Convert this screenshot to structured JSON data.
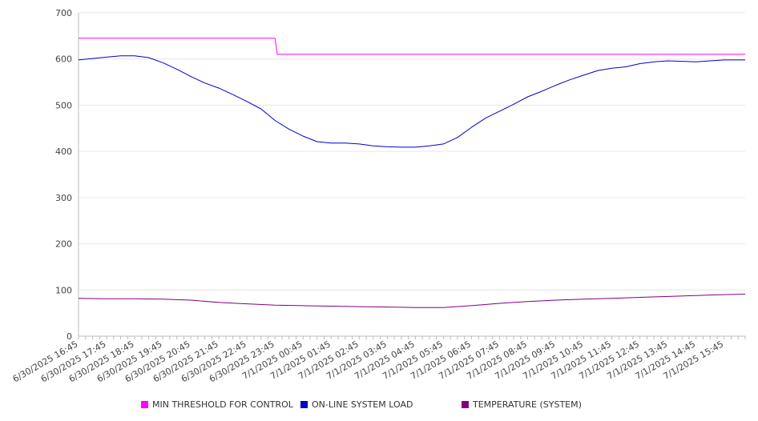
{
  "chart_data": {
    "type": "line",
    "title": "",
    "xlabel": "",
    "ylabel": "",
    "ylim": [
      0,
      700
    ],
    "y_ticks": [
      0,
      100,
      200,
      300,
      400,
      500,
      600,
      700
    ],
    "grid": "horizontal",
    "legend_position": "bottom",
    "x_tick_labels": [
      "6/30/2025 16:45",
      "6/30/2025 17:45",
      "6/30/2025 18:45",
      "6/30/2025 19:45",
      "6/30/2025 20:45",
      "6/30/2025 21:45",
      "6/30/2025 22:45",
      "6/30/2025 23:45",
      "7/1/2025 00:45",
      "7/1/2025 01:45",
      "7/1/2025 02:45",
      "7/1/2025 03:45",
      "7/1/2025 04:45",
      "7/1/2025 05:45",
      "7/1/2025 06:45",
      "7/1/2025 07:45",
      "7/1/2025 08:45",
      "7/1/2025 09:45",
      "7/1/2025 10:45",
      "7/1/2025 11:45",
      "7/1/2025 12:45",
      "7/1/2025 13:45",
      "7/1/2025 14:45",
      "7/1/2025 15:45"
    ],
    "x_range": [
      "6/30/2025 16:45",
      "7/1/2025 16:30"
    ],
    "series": [
      {
        "name": "MIN THRESHOLD FOR CONTROL",
        "color": "#ff00ff",
        "x": [
          "6/30/2025 16:45",
          "6/30/2025 23:45",
          "6/30/2025 23:50",
          "7/1/2025 16:30"
        ],
        "y": [
          645,
          645,
          610,
          610
        ]
      },
      {
        "name": "ON-LINE SYSTEM LOAD",
        "color": "#0000cc",
        "x": [
          "6/30/2025 16:45",
          "6/30/2025 17:15",
          "6/30/2025 17:45",
          "6/30/2025 18:15",
          "6/30/2025 18:45",
          "6/30/2025 19:15",
          "6/30/2025 19:45",
          "6/30/2025 20:15",
          "6/30/2025 20:45",
          "6/30/2025 21:15",
          "6/30/2025 21:45",
          "6/30/2025 22:15",
          "6/30/2025 22:45",
          "6/30/2025 23:15",
          "6/30/2025 23:45",
          "7/1/2025 00:15",
          "7/1/2025 00:45",
          "7/1/2025 01:15",
          "7/1/2025 01:45",
          "7/1/2025 02:15",
          "7/1/2025 02:45",
          "7/1/2025 03:15",
          "7/1/2025 03:45",
          "7/1/2025 04:15",
          "7/1/2025 04:45",
          "7/1/2025 05:15",
          "7/1/2025 05:45",
          "7/1/2025 06:15",
          "7/1/2025 06:45",
          "7/1/2025 07:15",
          "7/1/2025 07:45",
          "7/1/2025 08:15",
          "7/1/2025 08:45",
          "7/1/2025 09:15",
          "7/1/2025 09:45",
          "7/1/2025 10:15",
          "7/1/2025 10:45",
          "7/1/2025 11:15",
          "7/1/2025 11:45",
          "7/1/2025 12:15",
          "7/1/2025 12:45",
          "7/1/2025 13:15",
          "7/1/2025 13:45",
          "7/1/2025 14:15",
          "7/1/2025 14:45",
          "7/1/2025 15:15",
          "7/1/2025 15:45",
          "7/1/2025 16:30"
        ],
        "y": [
          598,
          601,
          604,
          607,
          607,
          603,
          592,
          578,
          562,
          548,
          537,
          523,
          508,
          492,
          467,
          448,
          433,
          421,
          418,
          418,
          416,
          412,
          410,
          409,
          409,
          412,
          416,
          430,
          452,
          472,
          487,
          502,
          518,
          530,
          543,
          555,
          565,
          575,
          580,
          583,
          590,
          594,
          596,
          595,
          594,
          596,
          598,
          598
        ]
      },
      {
        "name": "TEMPERATURE (SYSTEM)",
        "color": "#800080",
        "x": [
          "6/30/2025 16:45",
          "6/30/2025 17:45",
          "6/30/2025 18:45",
          "6/30/2025 19:45",
          "6/30/2025 20:45",
          "6/30/2025 21:45",
          "6/30/2025 22:45",
          "6/30/2025 23:45",
          "7/1/2025 00:45",
          "7/1/2025 01:45",
          "7/1/2025 02:45",
          "7/1/2025 03:45",
          "7/1/2025 04:45",
          "7/1/2025 05:45",
          "7/1/2025 06:45",
          "7/1/2025 07:45",
          "7/1/2025 08:45",
          "7/1/2025 09:45",
          "7/1/2025 10:45",
          "7/1/2025 11:45",
          "7/1/2025 12:45",
          "7/1/2025 13:45",
          "7/1/2025 14:45",
          "7/1/2025 15:45",
          "7/1/2025 16:30"
        ],
        "y": [
          82,
          81,
          81,
          80,
          78,
          73,
          70,
          67,
          66,
          65,
          64,
          63,
          62,
          62,
          66,
          71,
          75,
          78,
          80,
          82,
          84,
          86,
          88,
          90,
          91
        ]
      }
    ]
  }
}
